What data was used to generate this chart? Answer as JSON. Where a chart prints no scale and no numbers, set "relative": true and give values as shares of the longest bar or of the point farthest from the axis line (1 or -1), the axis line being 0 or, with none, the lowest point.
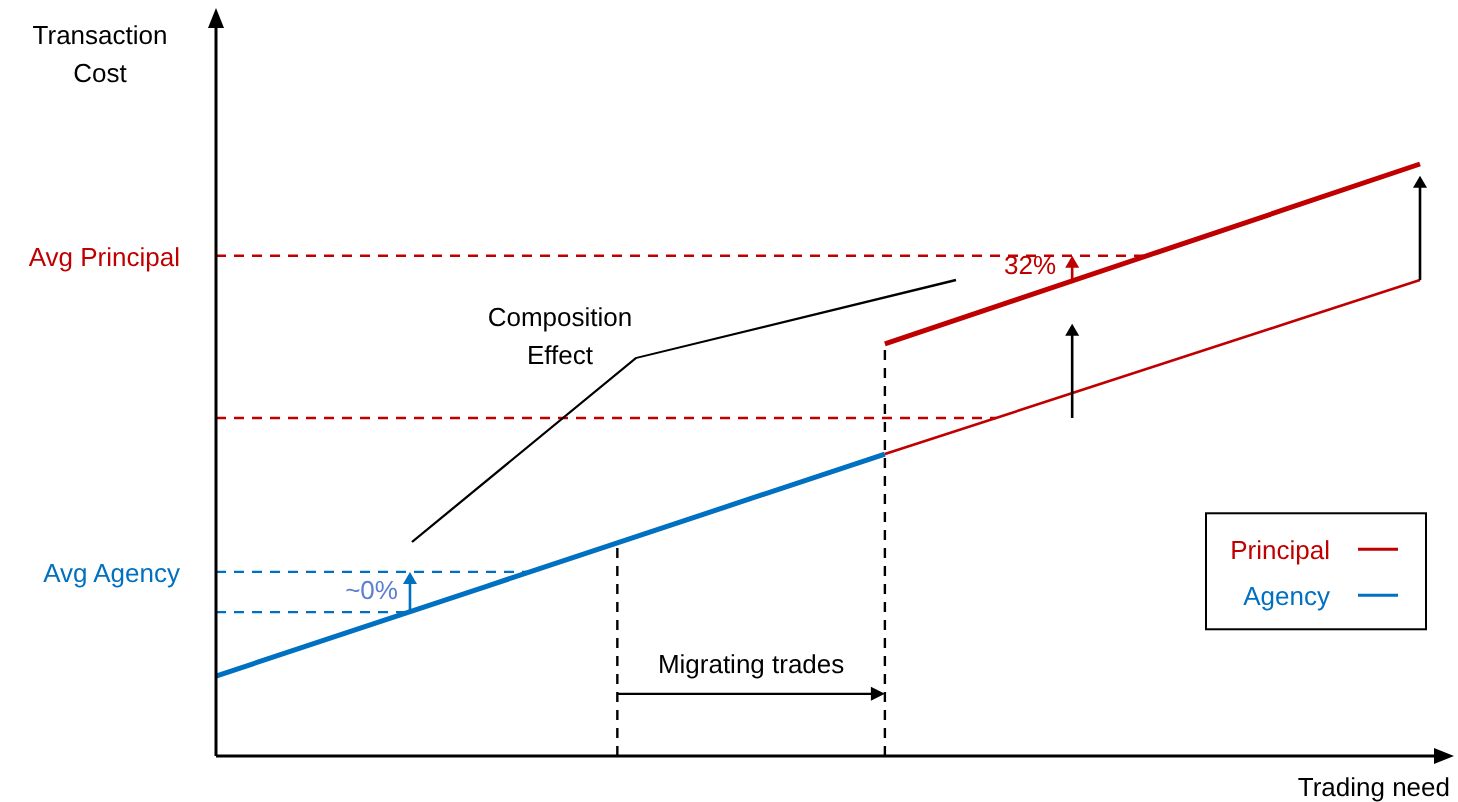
{
  "chart_data": {
    "type": "line",
    "relative": true,
    "xlabel": "Trading need",
    "ylabel": "Transaction Cost",
    "tick_labels": false,
    "legend": "bottom right",
    "categories": [
      null,
      null,
      null,
      null,
      null,
      null,
      null,
      null,
      null,
      null
    ],
    "series": [
      {
        "name": "Principal",
        "color": "#c00000",
        "values": [
          null,
          null,
          null,
          null,
          null,
          0.696,
          0.772,
          0.848,
          0.924,
          1
        ]
      },
      {
        "color": "#c00000",
        "values": [
          null,
          null,
          null,
          null,
          null,
          0.51,
          0.5835,
          0.657,
          0.7305,
          0.804
        ]
      },
      {
        "name": "Agency",
        "color": "#0070c0",
        "values": [
          0.135,
          0.21,
          0.285,
          0.36,
          0.435,
          0.51,
          null,
          null,
          null,
          null
        ]
      }
    ],
    "ref_lines": [
      {
        "axis": "y",
        "value": 0.845,
        "label": "Avg Principal",
        "color": "#c00000",
        "line_style": "dashed"
      },
      {
        "axis": "y",
        "value": 0.571,
        "color": "#c00000",
        "line_style": "dashed"
      },
      {
        "axis": "y",
        "value": 0.311,
        "label": "Avg Agency",
        "color": "#0070c0",
        "line_style": "dashed"
      },
      {
        "axis": "y",
        "value": 0.243,
        "color": "#0070c0",
        "line_style": "dashed"
      }
    ],
    "annotations": [
      "Composition Effect",
      "32%",
      "~0%",
      "Migrating trades"
    ]
  }
}
